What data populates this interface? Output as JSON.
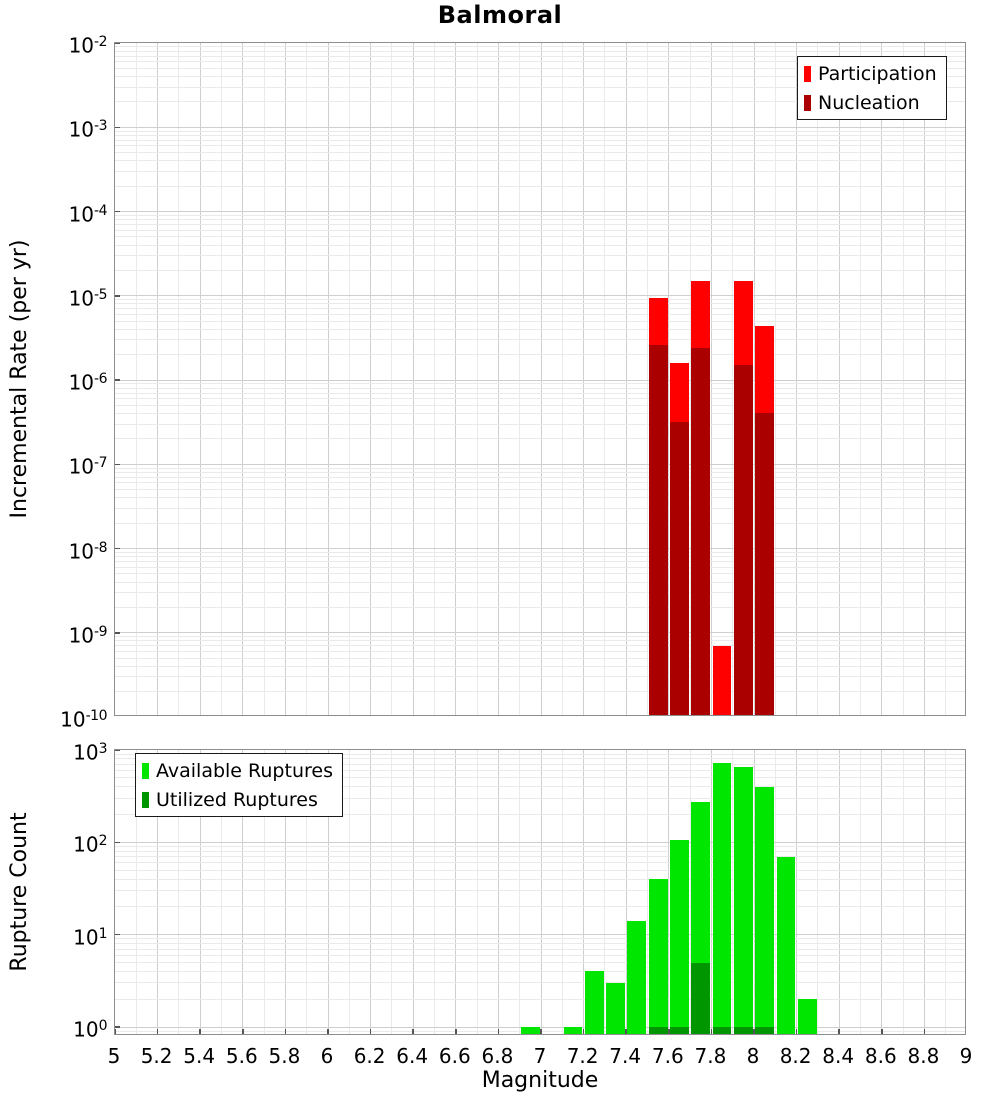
{
  "title": "Balmoral",
  "chart_data": [
    {
      "type": "bar",
      "panel": "top",
      "title": "Balmoral",
      "xlabel": "",
      "ylabel": "Incremental Rate (per yr)",
      "bin_width": 0.1,
      "x_axis": {
        "min": 5,
        "max": 9,
        "tick_step": 0.2,
        "minor_step": 0.1
      },
      "y_axis": {
        "scale": "log",
        "min": 1e-10,
        "max": 0.01,
        "tick_exponents": [
          -2,
          -3,
          -4,
          -5,
          -6,
          -7,
          -8,
          -9,
          -10
        ]
      },
      "legend": {
        "position": "top-right",
        "entries": [
          {
            "label": "Participation",
            "color": "#ff0000"
          },
          {
            "label": "Nucleation",
            "color": "#aa0000"
          }
        ]
      },
      "categories": [
        7.55,
        7.65,
        7.75,
        7.85,
        7.95,
        8.05
      ],
      "series": [
        {
          "name": "Participation",
          "color": "#ff0000",
          "values": [
            9.5e-06,
            1.6e-06,
            1.5e-05,
            7e-10,
            1.5e-05,
            4.4e-06
          ]
        },
        {
          "name": "Nucleation",
          "color": "#aa0000",
          "values": [
            2.6e-06,
            3.2e-07,
            2.4e-06,
            null,
            1.5e-06,
            4.1e-07
          ]
        }
      ],
      "grid": true
    },
    {
      "type": "bar",
      "panel": "bottom",
      "title": "",
      "xlabel": "Magnitude",
      "ylabel": "Rupture Count",
      "bin_width": 0.1,
      "x_axis": {
        "min": 5,
        "max": 9,
        "tick_step": 0.2,
        "minor_step": 0.1,
        "tick_labels": [
          "5",
          "5.2",
          "5.4",
          "5.6",
          "5.8",
          "6",
          "6.2",
          "6.4",
          "6.6",
          "6.8",
          "7",
          "7.2",
          "7.4",
          "7.6",
          "7.8",
          "8",
          "8.2",
          "8.4",
          "8.6",
          "8.8",
          "9"
        ]
      },
      "y_axis": {
        "scale": "log",
        "min": 0.8,
        "max": 1000,
        "tick_exponents": [
          3,
          2,
          1,
          0
        ]
      },
      "legend": {
        "position": "top-left",
        "entries": [
          {
            "label": "Available Ruptures",
            "color": "#00e600"
          },
          {
            "label": "Utilized Ruptures",
            "color": "#009600"
          }
        ]
      },
      "categories": [
        6.95,
        7.15,
        7.25,
        7.35,
        7.45,
        7.55,
        7.65,
        7.75,
        7.85,
        7.95,
        8.05,
        8.15,
        8.25
      ],
      "series": [
        {
          "name": "Available Ruptures",
          "color": "#00e600",
          "values": [
            1,
            1,
            4,
            3,
            14,
            40,
            105,
            275,
            730,
            660,
            400,
            70,
            2
          ]
        },
        {
          "name": "Utilized Ruptures",
          "color": "#009600",
          "values": [
            null,
            null,
            null,
            null,
            null,
            1,
            1,
            5,
            1,
            1,
            1,
            null,
            null
          ]
        }
      ],
      "grid": true
    }
  ]
}
